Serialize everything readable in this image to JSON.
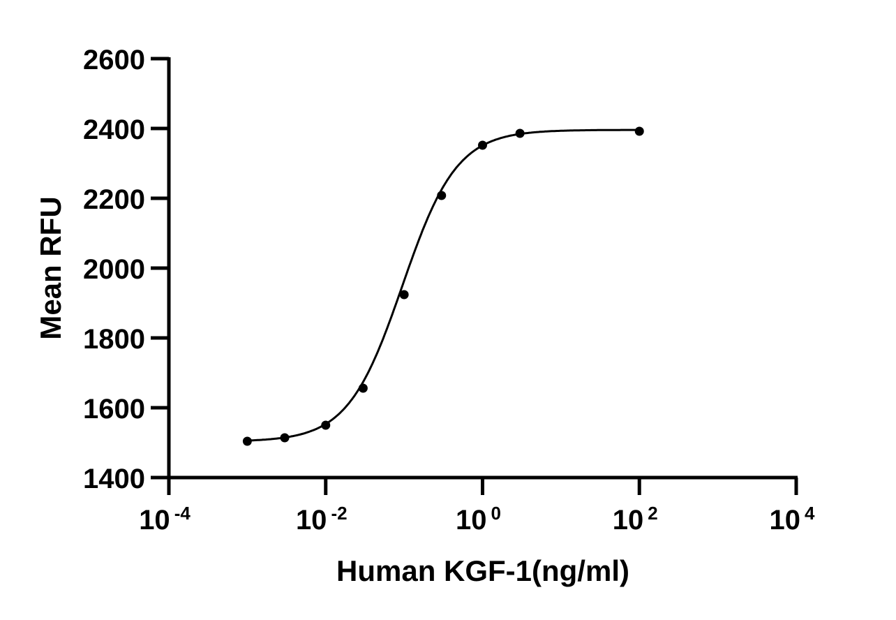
{
  "chart_data": {
    "type": "scatter",
    "title": "",
    "xlabel": "Human KGF-1(ng/ml)",
    "ylabel": "Mean RFU",
    "xscale": "log",
    "xlim": [
      0.0001,
      10000
    ],
    "ylim": [
      1400,
      2600
    ],
    "grid": false,
    "legend": null,
    "x_ticks": [
      {
        "base": "10",
        "exp": "-4",
        "value": 0.0001
      },
      {
        "base": "10",
        "exp": "-2",
        "value": 0.01
      },
      {
        "base": "10",
        "exp": "0",
        "value": 1
      },
      {
        "base": "10",
        "exp": "2",
        "value": 100
      },
      {
        "base": "10",
        "exp": "4",
        "value": 10000
      }
    ],
    "y_ticks": [
      1400,
      1600,
      1800,
      2000,
      2200,
      2400,
      2600
    ],
    "series": [
      {
        "name": "Human KGF-1",
        "marker": "circle",
        "fit": "4PL sigmoidal",
        "color": "#000000",
        "x": [
          0.001,
          0.003,
          0.01,
          0.03,
          0.1,
          0.3,
          1,
          3,
          100
        ],
        "y": [
          1504,
          1514,
          1550,
          1656,
          1924,
          2208,
          2352,
          2386,
          2392
        ]
      }
    ],
    "fit_params": {
      "bottom": 1503,
      "top": 2396,
      "ec50": 0.095,
      "hill": 1.25
    }
  }
}
